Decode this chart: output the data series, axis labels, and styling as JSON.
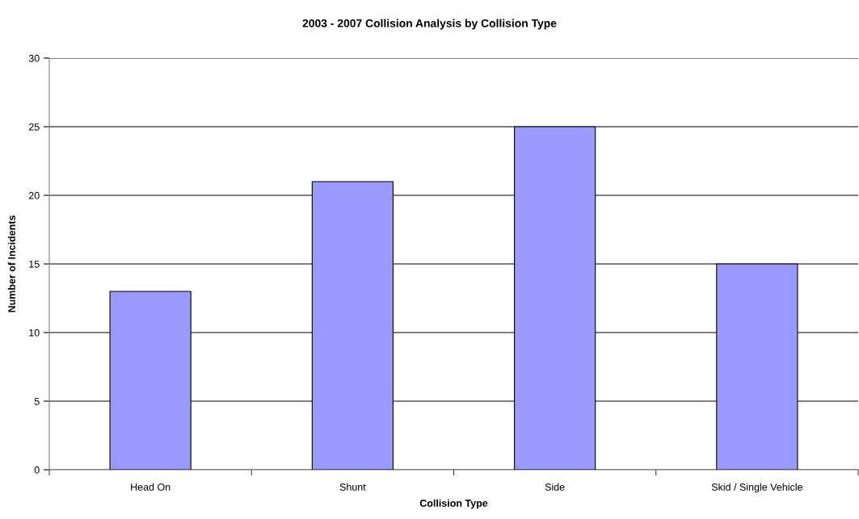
{
  "chart_data": {
    "type": "bar",
    "title": "2003 - 2007 Collision Analysis by Collision Type",
    "xlabel": "Collision Type",
    "ylabel": "Number of Incidents",
    "categories": [
      "Head On",
      "Shunt",
      "Side",
      "Skid / Single Vehicle"
    ],
    "values": [
      13,
      21,
      25,
      15
    ],
    "color": "#9999ff",
    "ylim": [
      0,
      30
    ],
    "yticks": [
      0,
      5,
      10,
      15,
      20,
      25,
      30
    ],
    "grid": "y",
    "legend": false
  }
}
